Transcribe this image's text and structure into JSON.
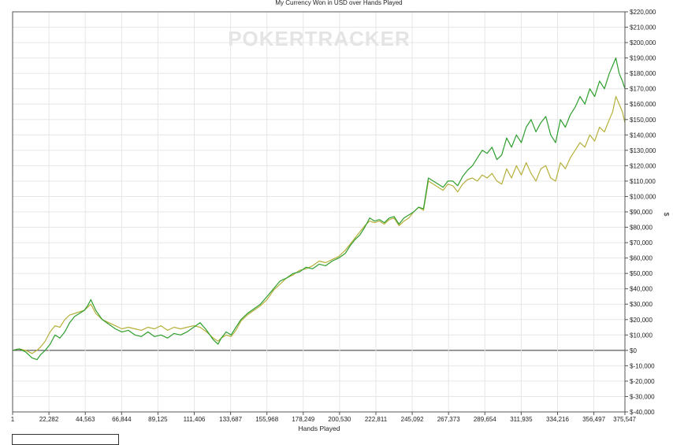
{
  "chart_data": {
    "type": "line",
    "title": "My Currency Won in USD over Hands Played",
    "watermark": "POKERTRACKER",
    "xlabel": "Hands Played",
    "ylabel": "$",
    "xlim": [
      1,
      375547
    ],
    "ylim": [
      -40000,
      220000
    ],
    "grid": true,
    "zero_line": true,
    "x_ticks": [
      1,
      22282,
      44563,
      66844,
      89125,
      111406,
      133687,
      155968,
      178249,
      200530,
      222811,
      245092,
      267373,
      289654,
      311935,
      334216,
      356497,
      375547
    ],
    "x_tick_labels": [
      "1",
      "22,282",
      "44,563",
      "66,844",
      "89,125",
      "111,406",
      "133,687",
      "155,968",
      "178,249",
      "200,530",
      "222,811",
      "245,092",
      "267,373",
      "289,654",
      "311,935",
      "334,216",
      "356,497",
      "375,547"
    ],
    "y_ticks": [
      220000,
      210000,
      200000,
      190000,
      180000,
      170000,
      160000,
      150000,
      140000,
      130000,
      120000,
      110000,
      100000,
      90000,
      80000,
      70000,
      60000,
      50000,
      40000,
      30000,
      20000,
      10000,
      0,
      -10000,
      -20000,
      -30000,
      -40000
    ],
    "y_tick_labels": [
      "$220,000",
      "$210,000",
      "$200,000",
      "$190,000",
      "$180,000",
      "$170,000",
      "$160,000",
      "$150,000",
      "$140,000",
      "$130,000",
      "$120,000",
      "$110,000",
      "$100,000",
      "$90,000",
      "$80,000",
      "$70,000",
      "$60,000",
      "$50,000",
      "$40,000",
      "$30,000",
      "$20,000",
      "$10,000",
      "$0",
      "$-10,000",
      "$-20,000",
      "$-30,000",
      "$-40,000"
    ],
    "series": [
      {
        "color": "#2e9e2e",
        "x": [
          1,
          4000,
          8000,
          12000,
          15000,
          17000,
          20000,
          23000,
          26000,
          29000,
          32000,
          35000,
          38000,
          41000,
          44000,
          46000,
          48000,
          51000,
          55000,
          59000,
          63000,
          67000,
          71000,
          75000,
          79000,
          83000,
          87000,
          91000,
          95000,
          99000,
          103000,
          107000,
          111000,
          115000,
          119000,
          123000,
          126000,
          128000,
          131000,
          134000,
          137000,
          140000,
          144000,
          148000,
          152000,
          156000,
          160000,
          164000,
          168000,
          172000,
          176000,
          180000,
          184000,
          188000,
          192000,
          196000,
          200000,
          204000,
          207000,
          210000,
          213000,
          216000,
          219000,
          222000,
          225000,
          228000,
          231000,
          234000,
          237000,
          240000,
          243000,
          246000,
          249000,
          252000,
          255000,
          258000,
          261000,
          264000,
          267000,
          270000,
          273000,
          276000,
          279000,
          282000,
          285000,
          288000,
          291000,
          294000,
          297000,
          300000,
          303000,
          306000,
          309000,
          312000,
          315000,
          318000,
          321000,
          324000,
          327000,
          330000,
          333000,
          336000,
          339000,
          342000,
          345000,
          348000,
          351000,
          354000,
          357000,
          360000,
          363000,
          366000,
          368000,
          370000,
          372000,
          374000,
          375547
        ],
        "y": [
          0,
          1000,
          -1000,
          -5000,
          -6000,
          -3000,
          0,
          4000,
          10000,
          8000,
          12000,
          18000,
          22000,
          24000,
          26000,
          29000,
          33000,
          26000,
          20000,
          17000,
          14000,
          12000,
          13000,
          10000,
          9000,
          12000,
          9000,
          10000,
          8000,
          11000,
          10000,
          12000,
          15000,
          18000,
          13000,
          7000,
          4000,
          8000,
          12000,
          10000,
          15000,
          20000,
          24000,
          27000,
          30000,
          35000,
          40000,
          45000,
          47000,
          50000,
          51000,
          54000,
          53000,
          56000,
          55000,
          58000,
          60000,
          63000,
          68000,
          72000,
          75000,
          80000,
          86000,
          84000,
          85000,
          83000,
          86000,
          87000,
          82000,
          86000,
          88000,
          90000,
          93000,
          92000,
          112000,
          110000,
          108000,
          106000,
          110000,
          110000,
          107000,
          113000,
          117000,
          120000,
          125000,
          130000,
          128000,
          132000,
          124000,
          127000,
          138000,
          132000,
          140000,
          135000,
          145000,
          150000,
          142000,
          148000,
          152000,
          140000,
          135000,
          150000,
          145000,
          153000,
          158000,
          165000,
          160000,
          170000,
          165000,
          175000,
          170000,
          180000,
          185000,
          190000,
          180000,
          175000,
          170000
        ]
      },
      {
        "color": "#b5b03a",
        "x": [
          1,
          4000,
          8000,
          12000,
          15000,
          17000,
          20000,
          23000,
          26000,
          29000,
          32000,
          35000,
          38000,
          41000,
          44000,
          46000,
          48000,
          51000,
          55000,
          59000,
          63000,
          67000,
          71000,
          75000,
          79000,
          83000,
          87000,
          91000,
          95000,
          99000,
          103000,
          107000,
          111000,
          115000,
          119000,
          123000,
          126000,
          128000,
          131000,
          134000,
          137000,
          140000,
          144000,
          148000,
          152000,
          156000,
          160000,
          164000,
          168000,
          172000,
          176000,
          180000,
          184000,
          188000,
          192000,
          196000,
          200000,
          204000,
          207000,
          210000,
          213000,
          216000,
          219000,
          222000,
          225000,
          228000,
          231000,
          234000,
          237000,
          240000,
          243000,
          246000,
          249000,
          252000,
          255000,
          258000,
          261000,
          264000,
          267000,
          270000,
          273000,
          276000,
          279000,
          282000,
          285000,
          288000,
          291000,
          294000,
          297000,
          300000,
          303000,
          306000,
          309000,
          312000,
          315000,
          318000,
          321000,
          324000,
          327000,
          330000,
          333000,
          336000,
          339000,
          342000,
          345000,
          348000,
          351000,
          354000,
          357000,
          360000,
          363000,
          366000,
          368000,
          370000,
          372000,
          374000,
          375547
        ],
        "y": [
          0,
          1000,
          0,
          -2000,
          0,
          2000,
          6000,
          12000,
          16000,
          15000,
          20000,
          23000,
          24000,
          25000,
          26000,
          28000,
          30000,
          24000,
          20000,
          18000,
          16000,
          14000,
          15000,
          14000,
          13000,
          15000,
          14000,
          16000,
          13000,
          15000,
          14000,
          15000,
          16000,
          15000,
          12000,
          8000,
          6000,
          8000,
          10000,
          9000,
          13000,
          19000,
          23000,
          26000,
          29000,
          33000,
          39000,
          43000,
          47000,
          49000,
          52000,
          53000,
          55000,
          58000,
          57000,
          59000,
          61000,
          65000,
          69000,
          73000,
          77000,
          81000,
          84000,
          83000,
          84000,
          82000,
          85000,
          86000,
          81000,
          84000,
          86000,
          90000,
          93000,
          91000,
          110000,
          108000,
          106000,
          104000,
          108000,
          107000,
          103000,
          108000,
          111000,
          112000,
          110000,
          114000,
          112000,
          115000,
          110000,
          108000,
          118000,
          112000,
          120000,
          114000,
          122000,
          115000,
          110000,
          118000,
          120000,
          112000,
          110000,
          122000,
          118000,
          125000,
          130000,
          135000,
          132000,
          140000,
          136000,
          145000,
          142000,
          150000,
          155000,
          165000,
          160000,
          155000,
          148000
        ]
      }
    ]
  }
}
